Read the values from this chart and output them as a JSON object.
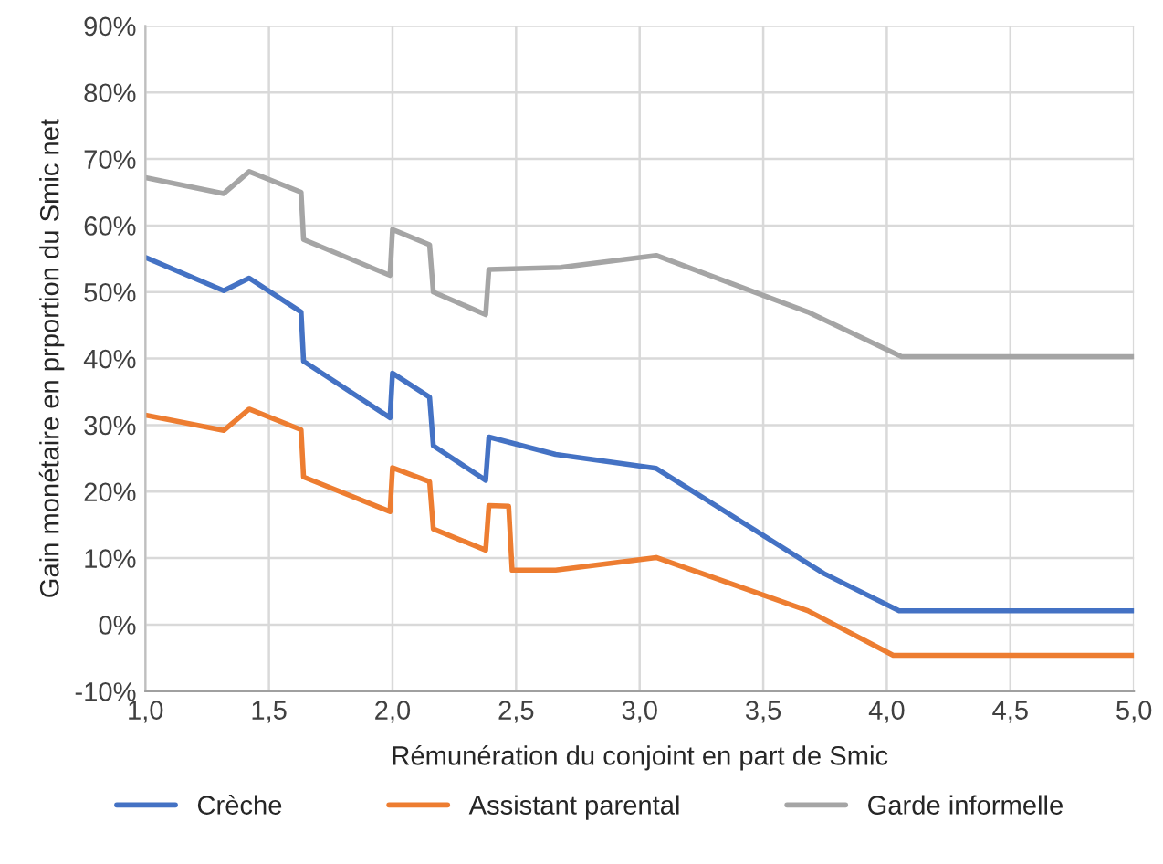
{
  "chart_data": {
    "type": "line",
    "xlabel": "Rémunération du conjoint en part de Smic",
    "ylabel": "Gain monétaire en prportion du Smic net",
    "xlim": [
      1,
      5
    ],
    "xticks": [
      {
        "value": 1,
        "label": "1,0"
      },
      {
        "value": 1.5,
        "label": "1,5"
      },
      {
        "value": 2,
        "label": "2,0"
      },
      {
        "value": 2.5,
        "label": "2,5"
      },
      {
        "value": 3,
        "label": "3,0"
      },
      {
        "value": 3.5,
        "label": "3,5"
      },
      {
        "value": 4,
        "label": "4,0"
      },
      {
        "value": 4.5,
        "label": "4,5"
      },
      {
        "value": 5,
        "label": "5,0"
      }
    ],
    "ylim": [
      -10,
      90
    ],
    "yticks": [
      {
        "value": -10,
        "label": "-10%"
      },
      {
        "value": 0,
        "label": "0%"
      },
      {
        "value": 10,
        "label": "10%"
      },
      {
        "value": 20,
        "label": "20%"
      },
      {
        "value": 30,
        "label": "30%"
      },
      {
        "value": 40,
        "label": "40%"
      },
      {
        "value": 50,
        "label": "50%"
      },
      {
        "value": 60,
        "label": "60%"
      },
      {
        "value": 70,
        "label": "70%"
      },
      {
        "value": 80,
        "label": "80%"
      },
      {
        "value": 90,
        "label": "90%"
      }
    ],
    "grid": true,
    "legend": "bottom",
    "marker": "none",
    "line_style": "solid",
    "series": [
      {
        "name": "Crèche",
        "color": "#4472c4",
        "x": [
          1.0,
          1.317,
          1.42,
          1.63,
          1.64,
          1.99,
          2.0,
          2.15,
          2.165,
          2.377,
          2.39,
          2.66,
          3.067,
          3.745,
          4.05,
          5.0
        ],
        "values": [
          55.2,
          50.2,
          52.1,
          47.0,
          39.6,
          31.1,
          37.8,
          34.2,
          26.9,
          21.7,
          28.2,
          25.6,
          23.5,
          7.7,
          2.1,
          2.1
        ]
      },
      {
        "name": "Assistant parental",
        "color": "#ed7d31",
        "x": [
          1.0,
          1.317,
          1.42,
          1.63,
          1.64,
          1.99,
          2.0,
          2.15,
          2.165,
          2.377,
          2.39,
          2.47,
          2.484,
          2.66,
          3.067,
          3.68,
          4.026,
          5.0
        ],
        "values": [
          31.5,
          29.2,
          32.4,
          29.3,
          22.2,
          17.0,
          23.6,
          21.5,
          14.4,
          11.2,
          17.9,
          17.8,
          8.2,
          8.2,
          10.1,
          2.1,
          -4.6,
          -4.6
        ]
      },
      {
        "name": "Garde informelle",
        "color": "#a5a5a5",
        "x": [
          1.0,
          1.317,
          1.42,
          1.63,
          1.64,
          1.99,
          2.0,
          2.15,
          2.165,
          2.377,
          2.39,
          2.68,
          3.067,
          3.68,
          4.06,
          5.0
        ],
        "values": [
          67.2,
          64.8,
          68.1,
          65.0,
          57.9,
          52.5,
          59.4,
          57.1,
          50.0,
          46.6,
          53.4,
          53.7,
          55.5,
          47.0,
          40.3,
          40.3
        ]
      }
    ]
  }
}
